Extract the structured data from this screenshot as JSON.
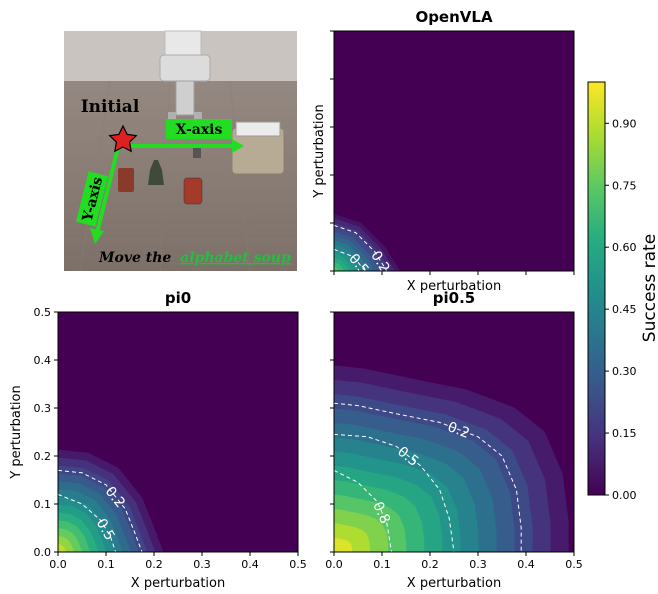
{
  "chart_data": [
    {
      "type": "contour",
      "title": "OpenVLA",
      "xlabel": "X perturbation",
      "ylabel": "Y perturbation",
      "xlim": [
        0,
        0.5
      ],
      "ylim": [
        0,
        0.5
      ],
      "contour_lines": [
        {
          "level": "0.2",
          "points": [
            [
              0,
              0.095
            ],
            [
              0.045,
              0.08
            ],
            [
              0.085,
              0.04
            ],
            [
              0.11,
              0
            ]
          ]
        },
        {
          "level": "0.5",
          "points": [
            [
              0,
              0.045
            ],
            [
              0.04,
              0.03
            ],
            [
              0.065,
              0
            ]
          ]
        }
      ],
      "peak_value": 0.72,
      "show_tick_labels": false
    },
    {
      "type": "contour",
      "title": "pi0",
      "xlabel": "X perturbation",
      "ylabel": "Y perturbation",
      "xlim": [
        0,
        0.5
      ],
      "ylim": [
        0,
        0.5
      ],
      "x_ticks": [
        "0.0",
        "0.1",
        "0.2",
        "0.3",
        "0.4",
        "0.5"
      ],
      "y_ticks": [
        "0.0",
        "0.1",
        "0.2",
        "0.3",
        "0.4",
        "0.5"
      ],
      "contour_lines": [
        {
          "level": "0.2",
          "points": [
            [
              0,
              0.17
            ],
            [
              0.05,
              0.165
            ],
            [
              0.1,
              0.14
            ],
            [
              0.14,
              0.09
            ],
            [
              0.16,
              0.04
            ],
            [
              0.175,
              0
            ]
          ]
        },
        {
          "level": "0.5",
          "points": [
            [
              0,
              0.12
            ],
            [
              0.05,
              0.1
            ],
            [
              0.09,
              0.065
            ],
            [
              0.11,
              0.03
            ],
            [
              0.12,
              0
            ]
          ]
        }
      ],
      "peak_value": 0.9
    },
    {
      "type": "contour",
      "title": "pi0.5",
      "xlabel": "X perturbation",
      "ylabel": "",
      "xlim": [
        0,
        0.5
      ],
      "ylim": [
        0,
        0.5
      ],
      "x_ticks": [
        "0.0",
        "0.1",
        "0.2",
        "0.3",
        "0.4",
        "0.5"
      ],
      "contour_lines": [
        {
          "level": "0.2",
          "points": [
            [
              0,
              0.31
            ],
            [
              0.05,
              0.305
            ],
            [
              0.12,
              0.29
            ],
            [
              0.22,
              0.27
            ],
            [
              0.3,
              0.24
            ],
            [
              0.35,
              0.2
            ],
            [
              0.38,
              0.13
            ],
            [
              0.39,
              0.05
            ],
            [
              0.39,
              0
            ]
          ]
        },
        {
          "level": "0.5",
          "points": [
            [
              0,
              0.245
            ],
            [
              0.07,
              0.24
            ],
            [
              0.13,
              0.22
            ],
            [
              0.18,
              0.18
            ],
            [
              0.22,
              0.13
            ],
            [
              0.24,
              0.07
            ],
            [
              0.25,
              0
            ]
          ]
        },
        {
          "level": "0.8",
          "points": [
            [
              0,
              0.17
            ],
            [
              0.05,
              0.145
            ],
            [
              0.09,
              0.105
            ],
            [
              0.11,
              0.06
            ],
            [
              0.12,
              0
            ]
          ]
        }
      ],
      "peak_value": 0.95
    }
  ],
  "colorbar": {
    "label": "Success rate",
    "range": [
      0,
      1
    ],
    "ticks": [
      "0.00",
      "0.15",
      "0.30",
      "0.45",
      "0.60",
      "0.75",
      "0.90"
    ]
  },
  "scene": {
    "initial_label": "Initial",
    "x_axis_label": "X-axis",
    "y_axis_label": "Y-axis",
    "instruction_prefix": "Move the",
    "instruction_object": "alphabet soup"
  }
}
